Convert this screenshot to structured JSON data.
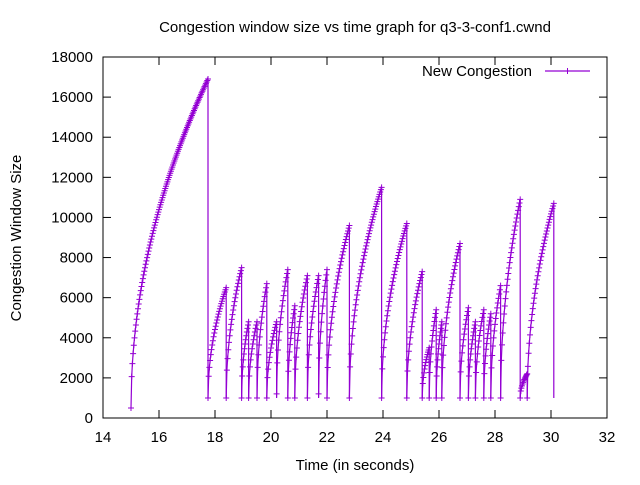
{
  "chart_data": {
    "type": "line",
    "title": "Congestion window size vs time graph for q3-3-conf1.cwnd",
    "xlabel": "Time (in seconds)",
    "ylabel": "Congestion Window Size",
    "xlim": [
      14,
      32
    ],
    "ylim": [
      0,
      18000
    ],
    "xticks": [
      14,
      16,
      18,
      20,
      22,
      24,
      26,
      28,
      30,
      32
    ],
    "yticks": [
      0,
      2000,
      4000,
      6000,
      8000,
      10000,
      12000,
      14000,
      16000,
      18000
    ],
    "grid": false,
    "legend_position": "top-right",
    "series": [
      {
        "name": "New Congestion",
        "color": "#9400d3",
        "marker": "plus",
        "cycles": [
          {
            "t0": 15.0,
            "t1": 17.75,
            "ymin": 500,
            "ymax": 16900
          },
          {
            "t0": 17.75,
            "t1": 18.4,
            "ymin": 1000,
            "ymax": 6500
          },
          {
            "t0": 18.4,
            "t1": 18.95,
            "ymin": 1000,
            "ymax": 7500
          },
          {
            "t0": 18.95,
            "t1": 19.2,
            "ymin": 1000,
            "ymax": 4800
          },
          {
            "t0": 19.2,
            "t1": 19.5,
            "ymin": 1000,
            "ymax": 4800
          },
          {
            "t0": 19.5,
            "t1": 19.85,
            "ymin": 1000,
            "ymax": 6700
          },
          {
            "t0": 19.85,
            "t1": 20.2,
            "ymin": 1000,
            "ymax": 4800
          },
          {
            "t0": 20.2,
            "t1": 20.6,
            "ymin": 1200,
            "ymax": 7400
          },
          {
            "t0": 20.6,
            "t1": 20.85,
            "ymin": 1000,
            "ymax": 5600
          },
          {
            "t0": 20.85,
            "t1": 21.3,
            "ymin": 1000,
            "ymax": 7100
          },
          {
            "t0": 21.3,
            "t1": 21.7,
            "ymin": 1000,
            "ymax": 7100
          },
          {
            "t0": 21.7,
            "t1": 22.0,
            "ymin": 1200,
            "ymax": 7400
          },
          {
            "t0": 22.0,
            "t1": 22.8,
            "ymin": 1000,
            "ymax": 9600
          },
          {
            "t0": 22.8,
            "t1": 23.95,
            "ymin": 1000,
            "ymax": 11500
          },
          {
            "t0": 23.95,
            "t1": 24.85,
            "ymin": 1000,
            "ymax": 9700
          },
          {
            "t0": 24.85,
            "t1": 25.4,
            "ymin": 1000,
            "ymax": 7300
          },
          {
            "t0": 25.4,
            "t1": 25.65,
            "ymin": 1000,
            "ymax": 3500
          },
          {
            "t0": 25.65,
            "t1": 25.9,
            "ymin": 1000,
            "ymax": 5400
          },
          {
            "t0": 25.9,
            "t1": 26.1,
            "ymin": 1000,
            "ymax": 4800
          },
          {
            "t0": 26.1,
            "t1": 26.75,
            "ymin": 1000,
            "ymax": 8700
          },
          {
            "t0": 26.75,
            "t1": 27.05,
            "ymin": 1000,
            "ymax": 5500
          },
          {
            "t0": 27.05,
            "t1": 27.3,
            "ymin": 1000,
            "ymax": 4800
          },
          {
            "t0": 27.3,
            "t1": 27.6,
            "ymin": 1000,
            "ymax": 5400
          },
          {
            "t0": 27.6,
            "t1": 27.85,
            "ymin": 1000,
            "ymax": 5200
          },
          {
            "t0": 27.85,
            "t1": 28.2,
            "ymin": 1000,
            "ymax": 6600
          },
          {
            "t0": 28.2,
            "t1": 28.9,
            "ymin": 1000,
            "ymax": 10900
          },
          {
            "t0": 28.9,
            "t1": 29.15,
            "ymin": 1000,
            "ymax": 2200
          },
          {
            "t0": 29.15,
            "t1": 30.1,
            "ymin": 1000,
            "ymax": 10700
          }
        ]
      }
    ]
  }
}
